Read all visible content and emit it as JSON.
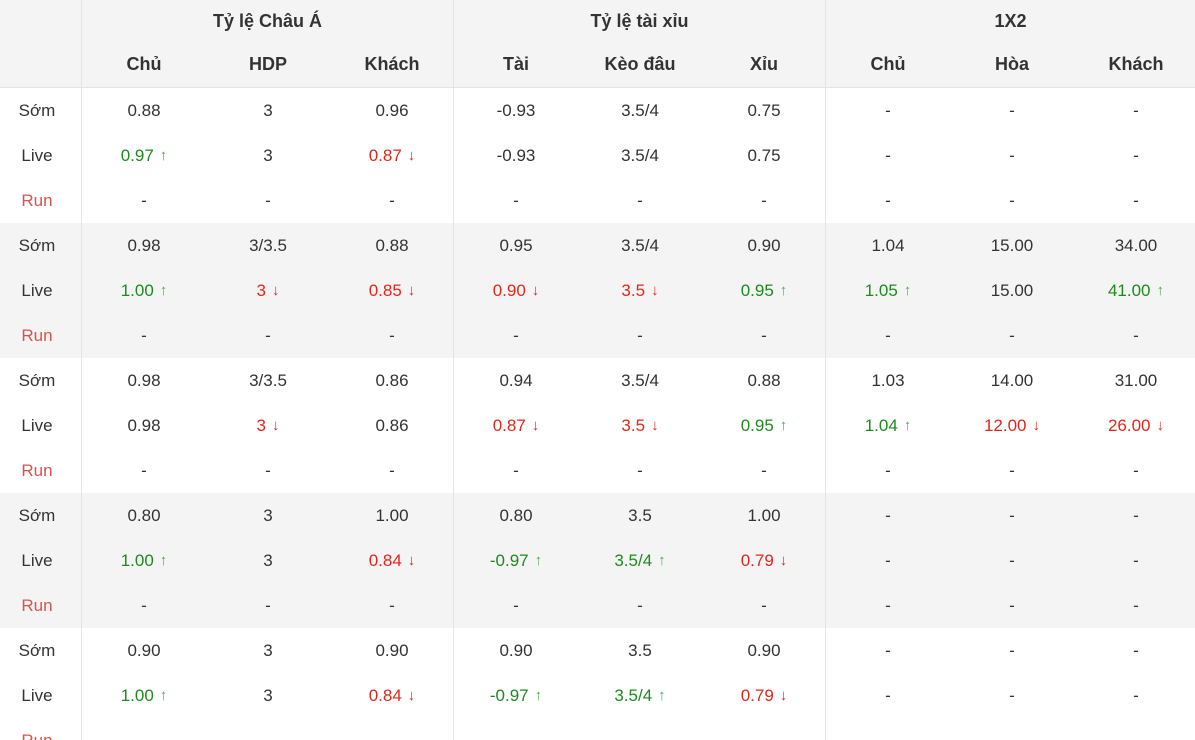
{
  "groups": [
    "Tỷ lệ Châu Á",
    "Tỷ lệ tài xỉu",
    "1X2"
  ],
  "columns": [
    "Chủ",
    "HDP",
    "Khách",
    "Tài",
    "Kèo đâu",
    "Xỉu",
    "Chủ",
    "Hòa",
    "Khách"
  ],
  "icons": {
    "up": "arrow-up-icon",
    "down": "arrow-down-icon"
  },
  "colors": {
    "up_text": "#1e8a1e",
    "up_arrow": "#4caf50",
    "down": "#e3261b",
    "run_label": "#d9534f",
    "header_bg": "#f4f4f4"
  },
  "blocks": [
    {
      "rows": [
        {
          "label": "Sớm",
          "cells": [
            {
              "v": "0.88"
            },
            {
              "v": "3"
            },
            {
              "v": "0.96"
            },
            {
              "v": "-0.93"
            },
            {
              "v": "3.5/4"
            },
            {
              "v": "0.75"
            },
            {
              "v": "-"
            },
            {
              "v": "-"
            },
            {
              "v": "-"
            }
          ]
        },
        {
          "label": "Live",
          "cells": [
            {
              "v": "0.97",
              "t": "up"
            },
            {
              "v": "3"
            },
            {
              "v": "0.87",
              "t": "down"
            },
            {
              "v": "-0.93"
            },
            {
              "v": "3.5/4"
            },
            {
              "v": "0.75"
            },
            {
              "v": "-"
            },
            {
              "v": "-"
            },
            {
              "v": "-"
            }
          ]
        },
        {
          "label": "Run",
          "cells": [
            {
              "v": "-"
            },
            {
              "v": "-"
            },
            {
              "v": "-"
            },
            {
              "v": "-"
            },
            {
              "v": "-"
            },
            {
              "v": "-"
            },
            {
              "v": "-"
            },
            {
              "v": "-"
            },
            {
              "v": "-"
            }
          ]
        }
      ]
    },
    {
      "rows": [
        {
          "label": "Sớm",
          "cells": [
            {
              "v": "0.98"
            },
            {
              "v": "3/3.5"
            },
            {
              "v": "0.88"
            },
            {
              "v": "0.95"
            },
            {
              "v": "3.5/4"
            },
            {
              "v": "0.90"
            },
            {
              "v": "1.04"
            },
            {
              "v": "15.00"
            },
            {
              "v": "34.00"
            }
          ]
        },
        {
          "label": "Live",
          "cells": [
            {
              "v": "1.00",
              "t": "up"
            },
            {
              "v": "3",
              "t": "down"
            },
            {
              "v": "0.85",
              "t": "down"
            },
            {
              "v": "0.90",
              "t": "down"
            },
            {
              "v": "3.5",
              "t": "down"
            },
            {
              "v": "0.95",
              "t": "up"
            },
            {
              "v": "1.05",
              "t": "up"
            },
            {
              "v": "15.00"
            },
            {
              "v": "41.00",
              "t": "up"
            }
          ]
        },
        {
          "label": "Run",
          "cells": [
            {
              "v": "-"
            },
            {
              "v": "-"
            },
            {
              "v": "-"
            },
            {
              "v": "-"
            },
            {
              "v": "-"
            },
            {
              "v": "-"
            },
            {
              "v": "-"
            },
            {
              "v": "-"
            },
            {
              "v": "-"
            }
          ]
        }
      ]
    },
    {
      "rows": [
        {
          "label": "Sớm",
          "cells": [
            {
              "v": "0.98"
            },
            {
              "v": "3/3.5"
            },
            {
              "v": "0.86"
            },
            {
              "v": "0.94"
            },
            {
              "v": "3.5/4"
            },
            {
              "v": "0.88"
            },
            {
              "v": "1.03"
            },
            {
              "v": "14.00"
            },
            {
              "v": "31.00"
            }
          ]
        },
        {
          "label": "Live",
          "cells": [
            {
              "v": "0.98"
            },
            {
              "v": "3",
              "t": "down"
            },
            {
              "v": "0.86"
            },
            {
              "v": "0.87",
              "t": "down"
            },
            {
              "v": "3.5",
              "t": "down"
            },
            {
              "v": "0.95",
              "t": "up"
            },
            {
              "v": "1.04",
              "t": "up"
            },
            {
              "v": "12.00",
              "t": "down"
            },
            {
              "v": "26.00",
              "t": "down"
            }
          ]
        },
        {
          "label": "Run",
          "cells": [
            {
              "v": "-"
            },
            {
              "v": "-"
            },
            {
              "v": "-"
            },
            {
              "v": "-"
            },
            {
              "v": "-"
            },
            {
              "v": "-"
            },
            {
              "v": "-"
            },
            {
              "v": "-"
            },
            {
              "v": "-"
            }
          ]
        }
      ]
    },
    {
      "rows": [
        {
          "label": "Sớm",
          "cells": [
            {
              "v": "0.80"
            },
            {
              "v": "3"
            },
            {
              "v": "1.00"
            },
            {
              "v": "0.80"
            },
            {
              "v": "3.5"
            },
            {
              "v": "1.00"
            },
            {
              "v": "-"
            },
            {
              "v": "-"
            },
            {
              "v": "-"
            }
          ]
        },
        {
          "label": "Live",
          "cells": [
            {
              "v": "1.00",
              "t": "up"
            },
            {
              "v": "3"
            },
            {
              "v": "0.84",
              "t": "down"
            },
            {
              "v": "-0.97",
              "t": "up"
            },
            {
              "v": "3.5/4",
              "t": "up"
            },
            {
              "v": "0.79",
              "t": "down"
            },
            {
              "v": "-"
            },
            {
              "v": "-"
            },
            {
              "v": "-"
            }
          ]
        },
        {
          "label": "Run",
          "cells": [
            {
              "v": "-"
            },
            {
              "v": "-"
            },
            {
              "v": "-"
            },
            {
              "v": "-"
            },
            {
              "v": "-"
            },
            {
              "v": "-"
            },
            {
              "v": "-"
            },
            {
              "v": "-"
            },
            {
              "v": "-"
            }
          ]
        }
      ]
    },
    {
      "rows": [
        {
          "label": "Sớm",
          "cells": [
            {
              "v": "0.90"
            },
            {
              "v": "3"
            },
            {
              "v": "0.90"
            },
            {
              "v": "0.90"
            },
            {
              "v": "3.5"
            },
            {
              "v": "0.90"
            },
            {
              "v": "-"
            },
            {
              "v": "-"
            },
            {
              "v": "-"
            }
          ]
        },
        {
          "label": "Live",
          "cells": [
            {
              "v": "1.00",
              "t": "up"
            },
            {
              "v": "3"
            },
            {
              "v": "0.84",
              "t": "down"
            },
            {
              "v": "-0.97",
              "t": "up"
            },
            {
              "v": "3.5/4",
              "t": "up"
            },
            {
              "v": "0.79",
              "t": "down"
            },
            {
              "v": "-"
            },
            {
              "v": "-"
            },
            {
              "v": "-"
            }
          ]
        },
        {
          "label": "Run",
          "cells": [
            {
              "v": "-"
            },
            {
              "v": "-"
            },
            {
              "v": "-"
            },
            {
              "v": "-"
            },
            {
              "v": "-"
            },
            {
              "v": "-"
            },
            {
              "v": "-"
            },
            {
              "v": "-"
            },
            {
              "v": "-"
            }
          ]
        }
      ]
    }
  ]
}
